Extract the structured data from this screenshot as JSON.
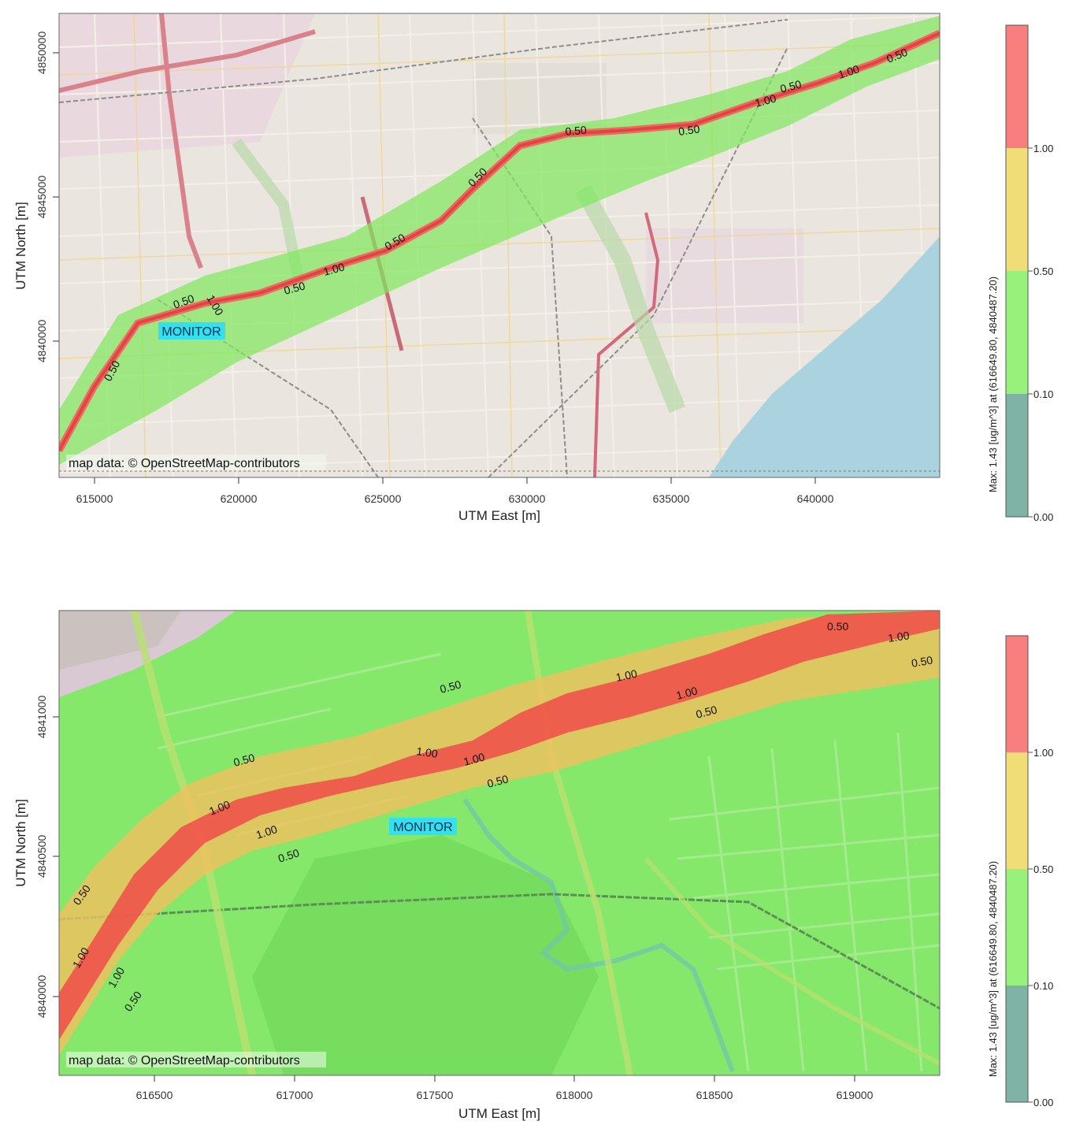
{
  "panels": [
    {
      "id": "overview",
      "x_label": "UTM East [m]",
      "y_label": "UTM North [m]",
      "x_ticks": [
        "615000",
        "620000",
        "625000",
        "630000",
        "635000",
        "640000"
      ],
      "y_ticks": [
        "4850000",
        "4845000",
        "4840000"
      ],
      "attribution": "map data: © OpenStreetMap-contributors",
      "monitor_label": "MONITOR",
      "contour_labels": [
        "0.50",
        "0.50",
        "1.00",
        "0.50",
        "1.00",
        "0.50",
        "0.50",
        "0.50",
        "0.50",
        "0.50",
        "1.00",
        "0.50",
        "1.00",
        "0.50"
      ],
      "colorbar": {
        "title": "Max: 1.43  [ug/m^3]  at  (616649.80, 4840487.20)",
        "levels": [
          "1.00",
          "0.50",
          "0.10",
          "0.00"
        ],
        "colors": [
          "#f97f7f",
          "#f1dd78",
          "#97f17a",
          "#7fb3a5"
        ]
      }
    },
    {
      "id": "zoom",
      "x_label": "UTM East [m]",
      "y_label": "UTM North [m]",
      "x_ticks": [
        "616500",
        "617000",
        "617500",
        "618000",
        "618500",
        "619000"
      ],
      "y_ticks": [
        "4841000",
        "4840500",
        "4840000"
      ],
      "attribution": "map data: © OpenStreetMap-contributors",
      "monitor_label": "MONITOR",
      "contour_labels": [
        "0.50",
        "1.00",
        "1.00",
        "0.50",
        "0.50",
        "1.00",
        "1.00",
        "0.50",
        "0.50",
        "1.00",
        "1.00",
        "0.50",
        "1.00",
        "1.00",
        "0.50",
        "0.50",
        "1.00",
        "1.00",
        "0.50"
      ],
      "colorbar": {
        "title": "Max: 1.43  [ug/m^3]  at  (616649.80, 4840487.20)",
        "levels": [
          "1.00",
          "0.50",
          "0.10",
          "0.00"
        ],
        "colors": [
          "#f97f7f",
          "#f1dd78",
          "#97f17a",
          "#7fb3a5"
        ]
      }
    }
  ]
}
